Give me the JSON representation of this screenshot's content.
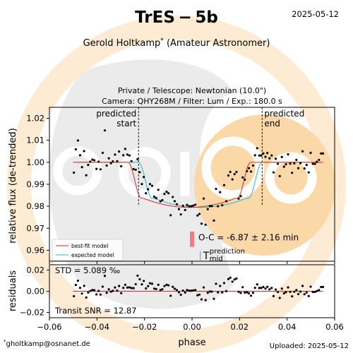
{
  "header": {
    "title": "TrES − 5b",
    "date": "2025-05-12",
    "observer": "Gerold Holtkamp",
    "observer_mark": "*",
    "observer_role": "(Amateur Astronomer)",
    "subtitle_line1": "Private / Telescope: Newtonian (10.0\")",
    "subtitle_line2": "Camera: QHY268M / Filter: Lum / Exp.: 180.0 s"
  },
  "footer": {
    "contact_mark": "*",
    "contact": "gholtkamp@osnanet.de",
    "uploaded": "Uploaded: 2025-05-12"
  },
  "colors": {
    "best_fit": "#e8231b",
    "expected": "#1bbfc8",
    "points": "#000000",
    "oc_bar": "#f08080",
    "watermark_circle": "#fdebd3",
    "watermark_blob": "#ebebeb"
  },
  "chart_data": [
    {
      "type": "scatter",
      "xlabel": "phase",
      "ylabel": "relative flux (de-trended)",
      "xlim": [
        -0.06,
        0.06
      ],
      "ylim": [
        0.955,
        1.025
      ],
      "xticks": [
        "−0.06",
        "−0.04",
        "−0.02",
        "0.00",
        "0.02",
        "0.04",
        "0.06"
      ],
      "yticks": [
        "0.96",
        "0.97",
        "0.98",
        "0.99",
        "1.00",
        "1.01",
        "1.02"
      ],
      "ytick_values": [
        0.96,
        0.97,
        0.98,
        0.99,
        1.0,
        1.01,
        1.02
      ],
      "annotations": {
        "predicted_start": {
          "x": -0.0225,
          "line1": "predicted",
          "line2": "start"
        },
        "predicted_end": {
          "x": 0.0295,
          "line1": "predicted",
          "line2": "end"
        },
        "oc_text": "O-C = -6.87 ± 2.16 min",
        "t_symbol": "T",
        "t_sup": "prediction",
        "t_sub": "mid",
        "t_mid_x": 0.0035,
        "oc_bar_x": 0.0,
        "oc_bar_ylim": [
          0.9615,
          0.9685
        ]
      },
      "legend": {
        "placement": "lower-left",
        "entries": [
          {
            "label": "best-fit model",
            "color": "#e8231b"
          },
          {
            "label": "expected model",
            "color": "#1bbfc8"
          }
        ]
      },
      "model": {
        "depth": 0.0205,
        "best_fit": {
          "t1": -0.02695,
          "t4": 0.0247
        },
        "expected": {
          "t1": -0.0225,
          "t4": 0.0295
        }
      },
      "series": [
        {
          "x": [
            -0.0497,
            -0.0489,
            -0.048,
            -0.0471,
            -0.0463,
            -0.0454,
            -0.0445,
            -0.0437,
            -0.0428,
            -0.0419,
            -0.0411,
            -0.0402,
            -0.0393,
            -0.0385,
            -0.0376,
            -0.0367,
            -0.0359,
            -0.035,
            -0.0341,
            -0.0333,
            -0.0324,
            -0.0315,
            -0.0307,
            -0.0298,
            -0.0289,
            -0.0281,
            -0.0272,
            -0.0263,
            -0.0255,
            -0.0246,
            -0.0237,
            -0.0229,
            -0.022,
            -0.0211,
            -0.0203,
            -0.0194,
            -0.0185,
            -0.0177,
            -0.0168,
            -0.0159,
            -0.0151,
            -0.0142,
            -0.0133,
            -0.0125,
            -0.0116,
            -0.0107,
            -0.0099,
            -0.009,
            -0.0081,
            -0.0073,
            -0.0064,
            -0.0055,
            -0.0047,
            -0.0038,
            -0.0029,
            -0.0021,
            -0.0012,
            -0.0003,
            0.0005,
            0.0014,
            0.0023,
            0.0031,
            0.004,
            0.0049,
            0.0057,
            0.0066,
            0.0075,
            0.0083,
            0.0092,
            0.0101,
            0.0109,
            0.0118,
            0.0127,
            0.0135,
            0.0144,
            0.0153,
            0.0161,
            0.017,
            0.0179,
            0.0187,
            0.0196,
            0.0205,
            0.0213,
            0.0222,
            0.0231,
            0.0239,
            0.0248,
            0.0257,
            0.0265,
            0.0274,
            0.0283,
            0.0291,
            0.03,
            0.0309,
            0.0317,
            0.0326,
            0.0335,
            0.0343,
            0.0352,
            0.0361,
            0.0369,
            0.0378,
            0.0387,
            0.0395,
            0.0404,
            0.0413,
            0.0421,
            0.043,
            0.0439,
            0.0447,
            0.0456,
            0.0465,
            0.0473,
            0.0482,
            0.0491,
            0.0499,
            0.0508,
            0.0517,
            0.0525,
            0.0534,
            0.0543,
            0.0551
          ],
          "y": [
            0.9953,
            1.0059,
            1.0099,
            1.0032,
            0.9978,
            1.0051,
            0.9941,
            0.9988,
            1.0003,
            1.0012,
            1.0009,
            0.997,
            1.0003,
            0.9968,
            1.0043,
            1.0145,
            0.9985,
            1.0018,
            0.9996,
            1.0004,
            1.0035,
            1.0005,
            1.0049,
            0.9982,
            1.0032,
            1.0061,
            1.0035,
            1.0031,
            1.0005,
            0.9969,
            0.9966,
            1.0014,
            0.9955,
            0.9901,
            0.9933,
            0.9859,
            0.9877,
            0.9901,
            0.9893,
            0.9844,
            0.9837,
            0.9875,
            0.9822,
            0.9828,
            0.9856,
            0.9866,
            0.9859,
            0.9759,
            0.9842,
            0.9823,
            0.9809,
            0.9787,
            0.9763,
            0.9802,
            0.9783,
            0.9806,
            0.98,
            0.98,
            0.9803,
            0.9807,
            0.9758,
            0.9765,
            0.9721,
            0.9835,
            0.9716,
            0.9787,
            0.9801,
            0.9801,
            0.9735,
            0.9879,
            0.98,
            0.9864,
            0.9805,
            0.9896,
            0.9823,
            0.994,
            0.9956,
            0.9922,
            0.9946,
            0.9956,
            0.9835,
            0.9846,
            0.9931,
            0.9921,
            0.996,
            0.9973,
            0.9958,
            0.9985,
            1.0032,
            1.0064,
            1.0031,
            1.0031,
            1.004,
            1.0025,
            1.0042,
            1.0018,
            1.0031,
            0.9954,
            1.0016,
            0.9993,
            0.9937,
            1.0024,
            0.998,
            0.9991,
            1.0036,
            0.9994,
            0.9952,
            0.9995,
            1.0011,
            0.9973,
            0.9996,
            1.005,
            0.9972,
            0.9988,
            0.9954,
            1.0043,
            0.9993,
            0.9993,
            1.0002,
            1.0011,
            1.004,
            1.004
          ]
        }
      ]
    },
    {
      "type": "scatter",
      "xlabel": "phase",
      "ylabel": "residuals",
      "xlim": [
        -0.06,
        0.06
      ],
      "ylim": [
        -0.025,
        0.025
      ],
      "yticks": [
        "−0.02",
        "0.00",
        "0.02"
      ],
      "ytick_values": [
        -0.02,
        0.0,
        0.02
      ],
      "std_text": "STD = 5.089 ‰",
      "snr_text": "Transit SNR = 12.87"
    }
  ]
}
